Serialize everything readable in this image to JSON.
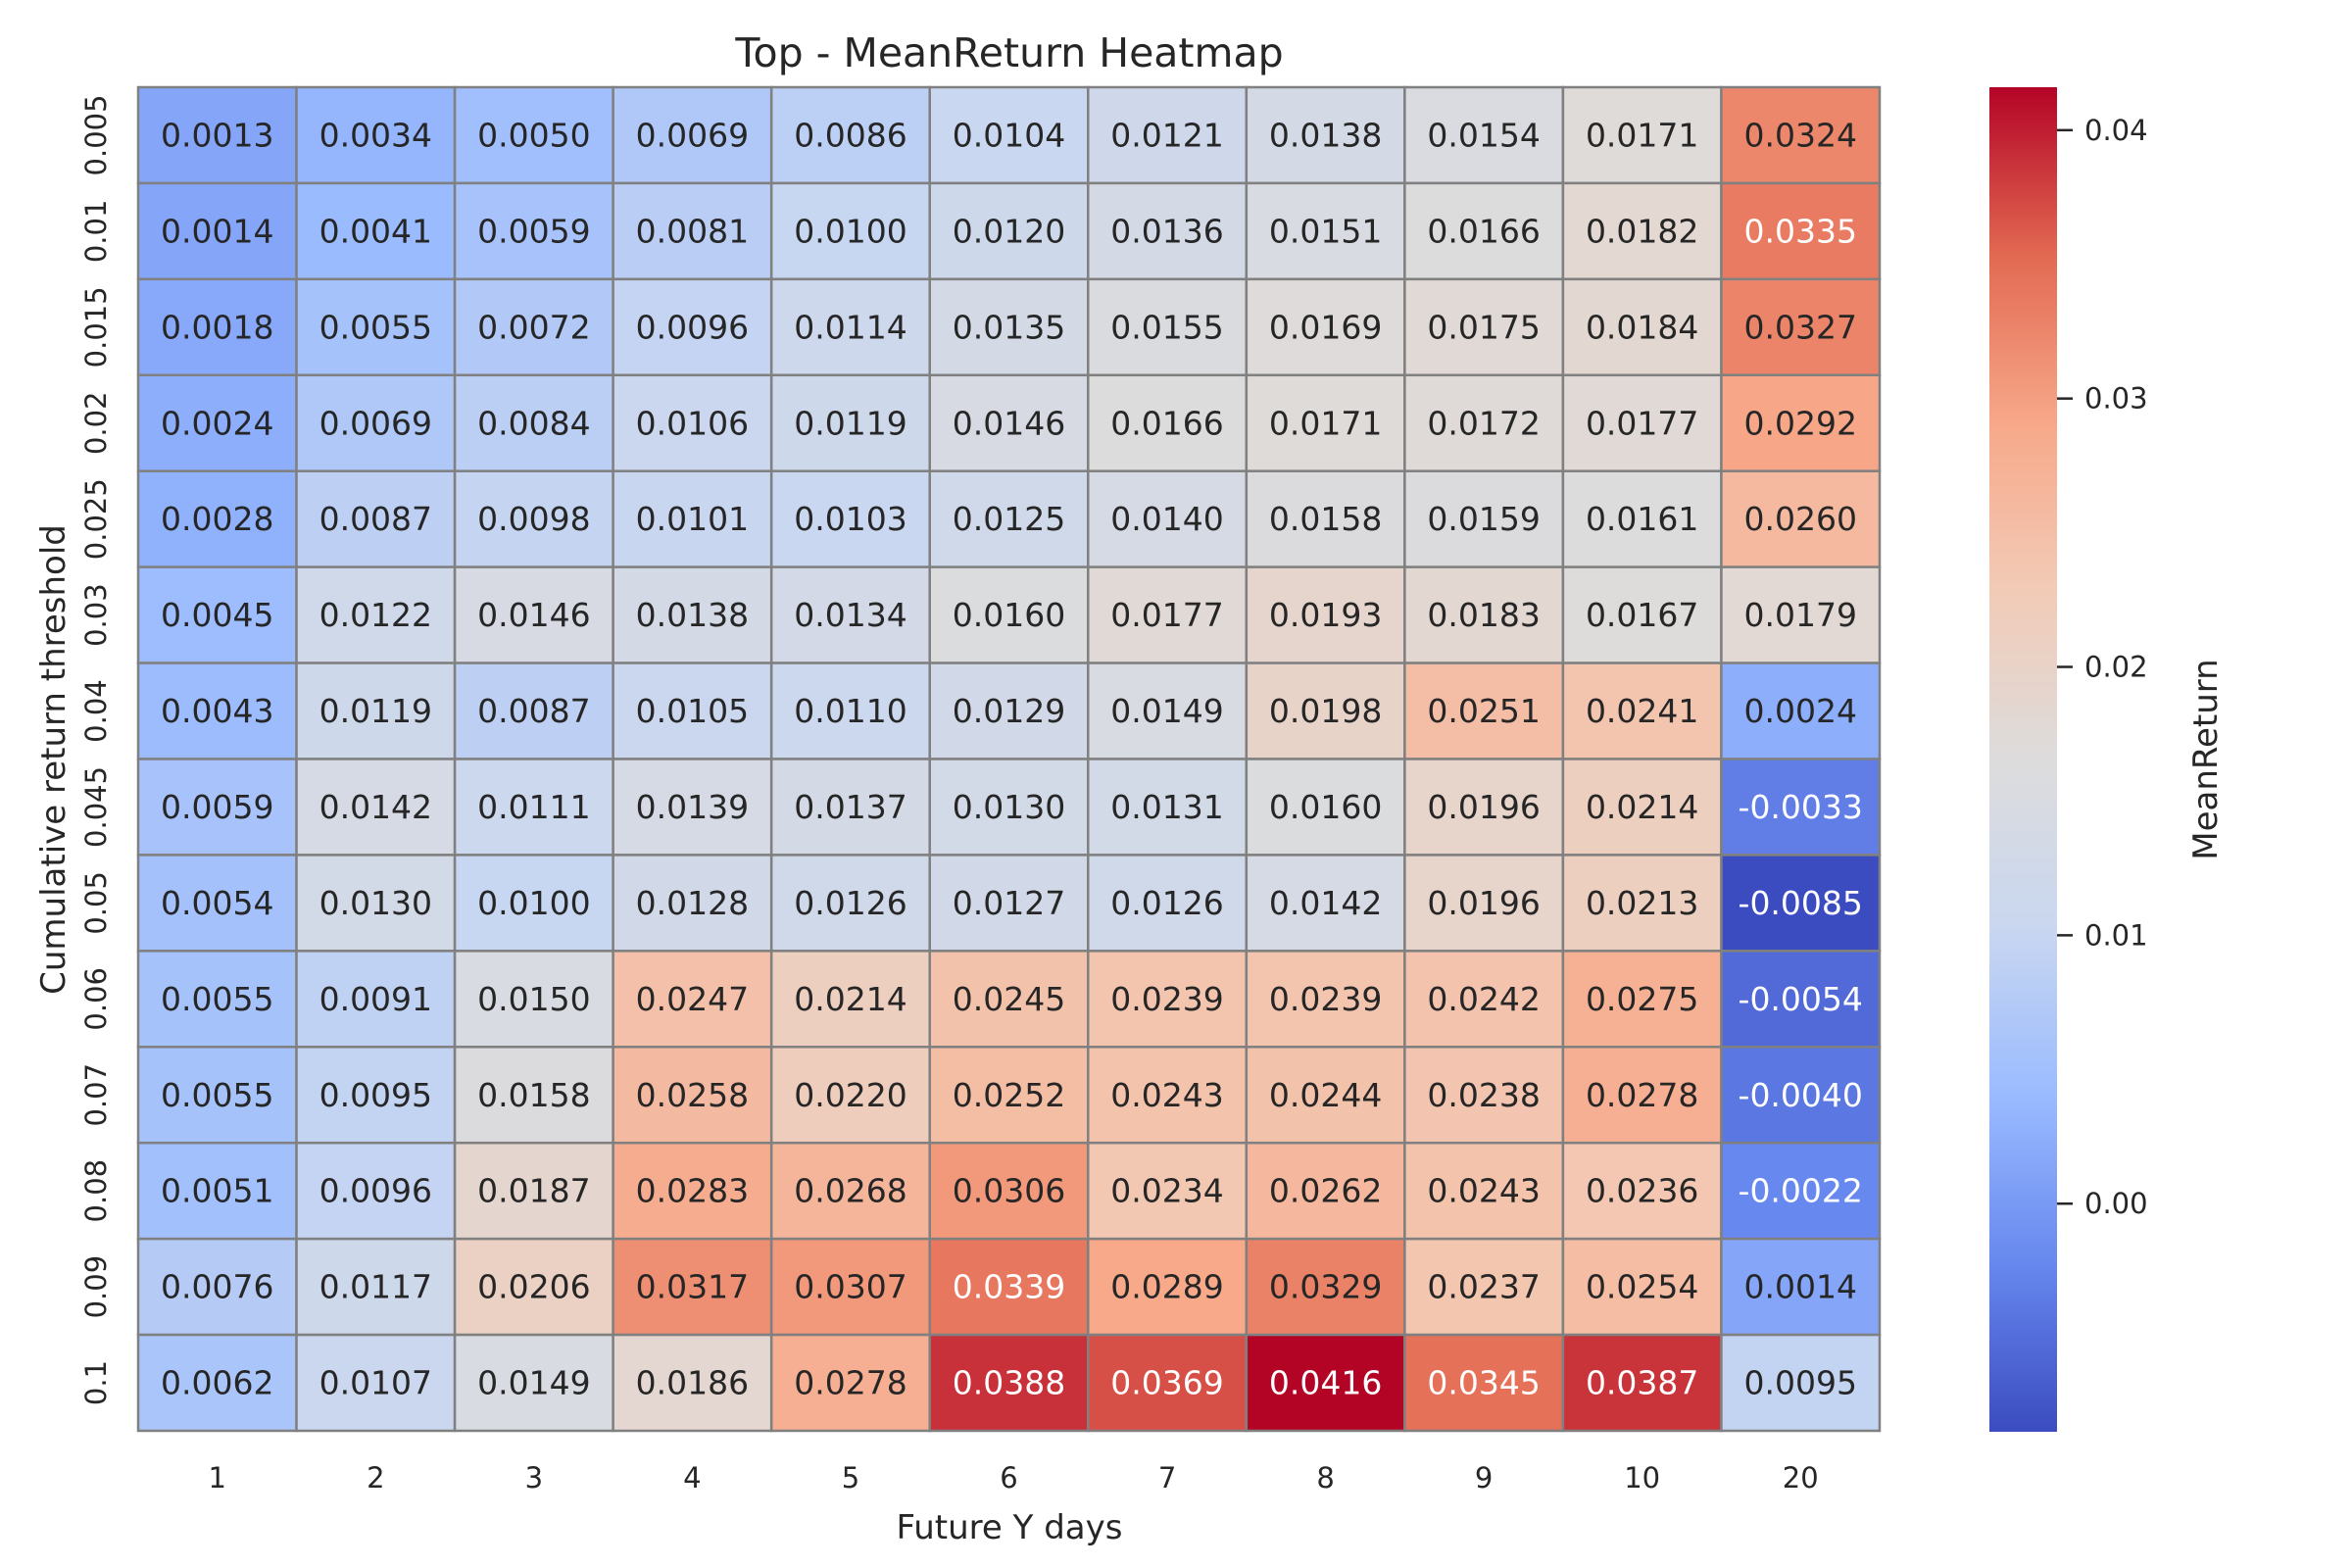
{
  "chart_data": {
    "type": "heatmap",
    "title": "Top - MeanReturn Heatmap",
    "xlabel": "Future Y days",
    "ylabel": "Cumulative return threshold",
    "x_categories": [
      "1",
      "2",
      "3",
      "4",
      "5",
      "6",
      "7",
      "8",
      "9",
      "10",
      "20"
    ],
    "y_categories": [
      "0.005",
      "0.01",
      "0.015",
      "0.02",
      "0.025",
      "0.03",
      "0.04",
      "0.045",
      "0.05",
      "0.06",
      "0.07",
      "0.08",
      "0.09",
      "0.1"
    ],
    "values": [
      [
        0.0013,
        0.0034,
        0.005,
        0.0069,
        0.0086,
        0.0104,
        0.0121,
        0.0138,
        0.0154,
        0.0171,
        0.0324
      ],
      [
        0.0014,
        0.0041,
        0.0059,
        0.0081,
        0.01,
        0.012,
        0.0136,
        0.0151,
        0.0166,
        0.0182,
        0.0335
      ],
      [
        0.0018,
        0.0055,
        0.0072,
        0.0096,
        0.0114,
        0.0135,
        0.0155,
        0.0169,
        0.0175,
        0.0184,
        0.0327
      ],
      [
        0.0024,
        0.0069,
        0.0084,
        0.0106,
        0.0119,
        0.0146,
        0.0166,
        0.0171,
        0.0172,
        0.0177,
        0.0292
      ],
      [
        0.0028,
        0.0087,
        0.0098,
        0.0101,
        0.0103,
        0.0125,
        0.014,
        0.0158,
        0.0159,
        0.0161,
        0.026
      ],
      [
        0.0045,
        0.0122,
        0.0146,
        0.0138,
        0.0134,
        0.016,
        0.0177,
        0.0193,
        0.0183,
        0.0167,
        0.0179
      ],
      [
        0.0043,
        0.0119,
        0.0087,
        0.0105,
        0.011,
        0.0129,
        0.0149,
        0.0198,
        0.0251,
        0.0241,
        0.0024
      ],
      [
        0.0059,
        0.0142,
        0.0111,
        0.0139,
        0.0137,
        0.013,
        0.0131,
        0.016,
        0.0196,
        0.0214,
        -0.0033
      ],
      [
        0.0054,
        0.013,
        0.01,
        0.0128,
        0.0126,
        0.0127,
        0.0126,
        0.0142,
        0.0196,
        0.0213,
        -0.0085
      ],
      [
        0.0055,
        0.0091,
        0.015,
        0.0247,
        0.0214,
        0.0245,
        0.0239,
        0.0239,
        0.0242,
        0.0275,
        -0.0054
      ],
      [
        0.0055,
        0.0095,
        0.0158,
        0.0258,
        0.022,
        0.0252,
        0.0243,
        0.0244,
        0.0238,
        0.0278,
        -0.004
      ],
      [
        0.0051,
        0.0096,
        0.0187,
        0.0283,
        0.0268,
        0.0306,
        0.0234,
        0.0262,
        0.0243,
        0.0236,
        -0.0022
      ],
      [
        0.0076,
        0.0117,
        0.0206,
        0.0317,
        0.0307,
        0.0339,
        0.0289,
        0.0329,
        0.0237,
        0.0254,
        0.0014
      ],
      [
        0.0062,
        0.0107,
        0.0149,
        0.0186,
        0.0278,
        0.0388,
        0.0369,
        0.0416,
        0.0345,
        0.0387,
        0.0095
      ]
    ],
    "value_format_decimals": 4,
    "colormap": "coolwarm",
    "vmin": -0.0085,
    "vmax": 0.0416,
    "colorbar": {
      "label": "MeanReturn",
      "ticks": [
        0.0,
        0.01,
        0.02,
        0.03,
        0.04
      ],
      "tick_labels": [
        "0.00",
        "0.01",
        "0.02",
        "0.03",
        "0.04"
      ]
    },
    "grid": true,
    "cell_border_color": "#808080",
    "colormap_stops": [
      "#3b4cc0",
      "#6788ee",
      "#9abbff",
      "#c9d7f0",
      "#dddcdc",
      "#f2cbb7",
      "#f7a889",
      "#e26952",
      "#b40426"
    ]
  }
}
